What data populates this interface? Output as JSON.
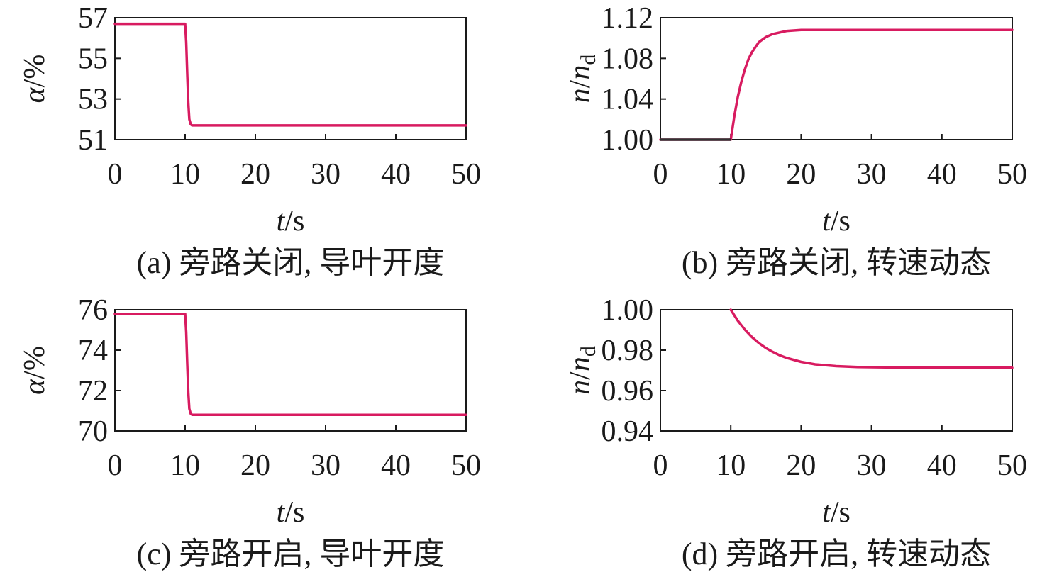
{
  "colors": {
    "series": "#d81b60",
    "axis": "#1a1a1a",
    "background": "#ffffff"
  },
  "chart_data": [
    {
      "type": "line",
      "caption": "(a) 旁路关闭, 导叶开度",
      "xlabel": "t/s",
      "ylabel": "α/%",
      "xlim": [
        0,
        50
      ],
      "ylim": [
        51,
        57
      ],
      "xticks": [
        0,
        10,
        20,
        30,
        40,
        50
      ],
      "yticks": [
        51,
        53,
        55,
        57
      ],
      "ytick_labels": [
        "51",
        "53",
        "55",
        "57"
      ],
      "series": [
        {
          "x": [
            0,
            10,
            10.15,
            10.3,
            10.45,
            10.6,
            10.8,
            11,
            50
          ],
          "y": [
            56.7,
            56.7,
            55.8,
            54.2,
            52.8,
            52.0,
            51.75,
            51.7,
            51.7
          ]
        }
      ]
    },
    {
      "type": "line",
      "caption": "(b) 旁路关闭, 转速动态",
      "xlabel": "t/s",
      "ylabel": "n/nd",
      "xlim": [
        0,
        50
      ],
      "ylim": [
        1.0,
        1.12
      ],
      "xticks": [
        0,
        10,
        20,
        30,
        40,
        50
      ],
      "yticks": [
        1.0,
        1.04,
        1.08,
        1.12
      ],
      "ytick_labels": [
        "1.00",
        "1.04",
        "1.08",
        "1.12"
      ],
      "series": [
        {
          "x": [
            0,
            10,
            10.5,
            11,
            11.5,
            12,
            12.5,
            13,
            14,
            15,
            16,
            18,
            20,
            25,
            30,
            50
          ],
          "y": [
            1.0,
            1.0,
            1.023,
            1.042,
            1.057,
            1.069,
            1.079,
            1.086,
            1.096,
            1.101,
            1.104,
            1.107,
            1.108,
            1.108,
            1.108,
            1.108
          ]
        }
      ]
    },
    {
      "type": "line",
      "caption": "(c) 旁路开启, 导叶开度",
      "xlabel": "t/s",
      "ylabel": "α/%",
      "xlim": [
        0,
        50
      ],
      "ylim": [
        70,
        76
      ],
      "xticks": [
        0,
        10,
        20,
        30,
        40,
        50
      ],
      "yticks": [
        70,
        72,
        74,
        76
      ],
      "ytick_labels": [
        "70",
        "72",
        "74",
        "76"
      ],
      "series": [
        {
          "x": [
            0,
            10,
            10.15,
            10.3,
            10.45,
            10.6,
            10.8,
            11,
            50
          ],
          "y": [
            75.8,
            75.8,
            74.9,
            73.3,
            71.9,
            71.1,
            70.85,
            70.8,
            70.8
          ]
        }
      ]
    },
    {
      "type": "line",
      "caption": "(d) 旁路开启, 转速动态",
      "xlabel": "t/s",
      "ylabel": "n/nd",
      "xlim": [
        0,
        50
      ],
      "ylim": [
        0.94,
        1.0
      ],
      "xticks": [
        0,
        10,
        20,
        30,
        40,
        50
      ],
      "yticks": [
        0.94,
        0.96,
        0.98,
        1.0
      ],
      "ytick_labels": [
        "0.94",
        "0.96",
        "0.98",
        "1.00"
      ],
      "series": [
        {
          "x": [
            10,
            11,
            12,
            13,
            14,
            15,
            16,
            17,
            18,
            20,
            22,
            25,
            28,
            32,
            36,
            40,
            50
          ],
          "y": [
            1.0,
            0.9946,
            0.9902,
            0.9865,
            0.9835,
            0.981,
            0.9791,
            0.9774,
            0.9761,
            0.9742,
            0.973,
            0.9721,
            0.9717,
            0.9715,
            0.9714,
            0.9713,
            0.9713
          ]
        }
      ]
    }
  ]
}
